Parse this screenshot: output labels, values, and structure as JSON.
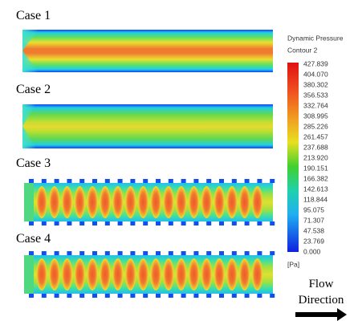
{
  "cases": [
    {
      "label": "Case 1"
    },
    {
      "label": "Case 2"
    },
    {
      "label": "Case 3"
    },
    {
      "label": "Case 4"
    }
  ],
  "legend": {
    "title": "Dynamic Pressure",
    "subtitle": "Contour 2",
    "labels": [
      "427.839",
      "404.070",
      "380.302",
      "356.533",
      "332.764",
      "308.995",
      "285.226",
      "261.457",
      "237.688",
      "213.920",
      "190.151",
      "166.382",
      "142.613",
      "118.844",
      "95.075",
      "71.307",
      "47.538",
      "23.769",
      "0.000"
    ],
    "unit": "[Pa]"
  },
  "flow": {
    "line1": "Flow",
    "line2": "Direction"
  }
}
